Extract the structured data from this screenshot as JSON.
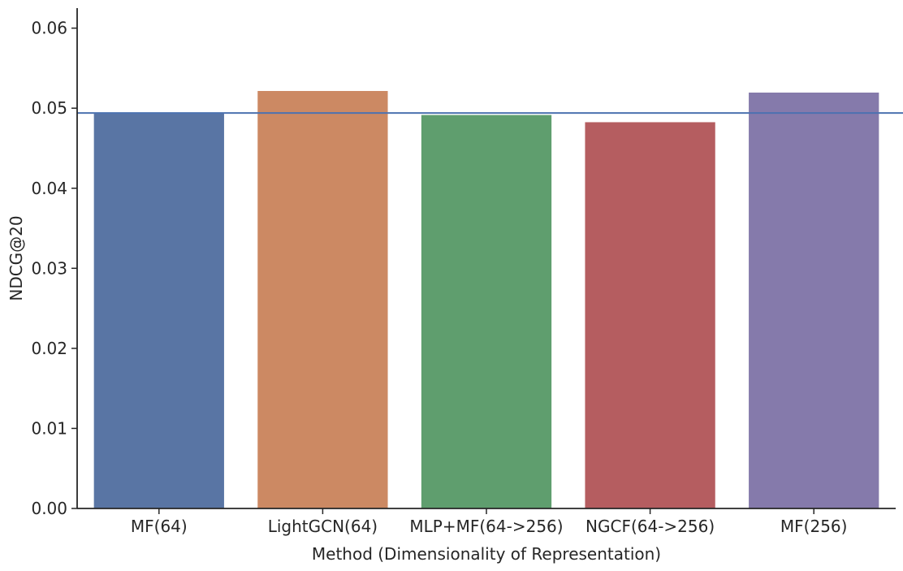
{
  "chart_data": {
    "type": "bar",
    "categories": [
      "MF(64)",
      "LightGCN(64)",
      "MLP+MF(64->256)",
      "NGCF(64->256)",
      "MF(256)"
    ],
    "values": [
      0.0494,
      0.0522,
      0.0492,
      0.0483,
      0.052
    ],
    "colors": [
      "#5975a4",
      "#cc8963",
      "#5f9e6e",
      "#b55d60",
      "#857aab"
    ],
    "xlabel": "Method (Dimensionality of Representation)",
    "ylabel": "NDCG@20",
    "ylim": [
      0,
      0.0625
    ],
    "yticks": [
      "0.00",
      "0.01",
      "0.02",
      "0.03",
      "0.04",
      "0.05",
      "0.06"
    ],
    "reference_line": {
      "y": 0.0494,
      "color": "#4c72b0"
    },
    "grid": false
  }
}
